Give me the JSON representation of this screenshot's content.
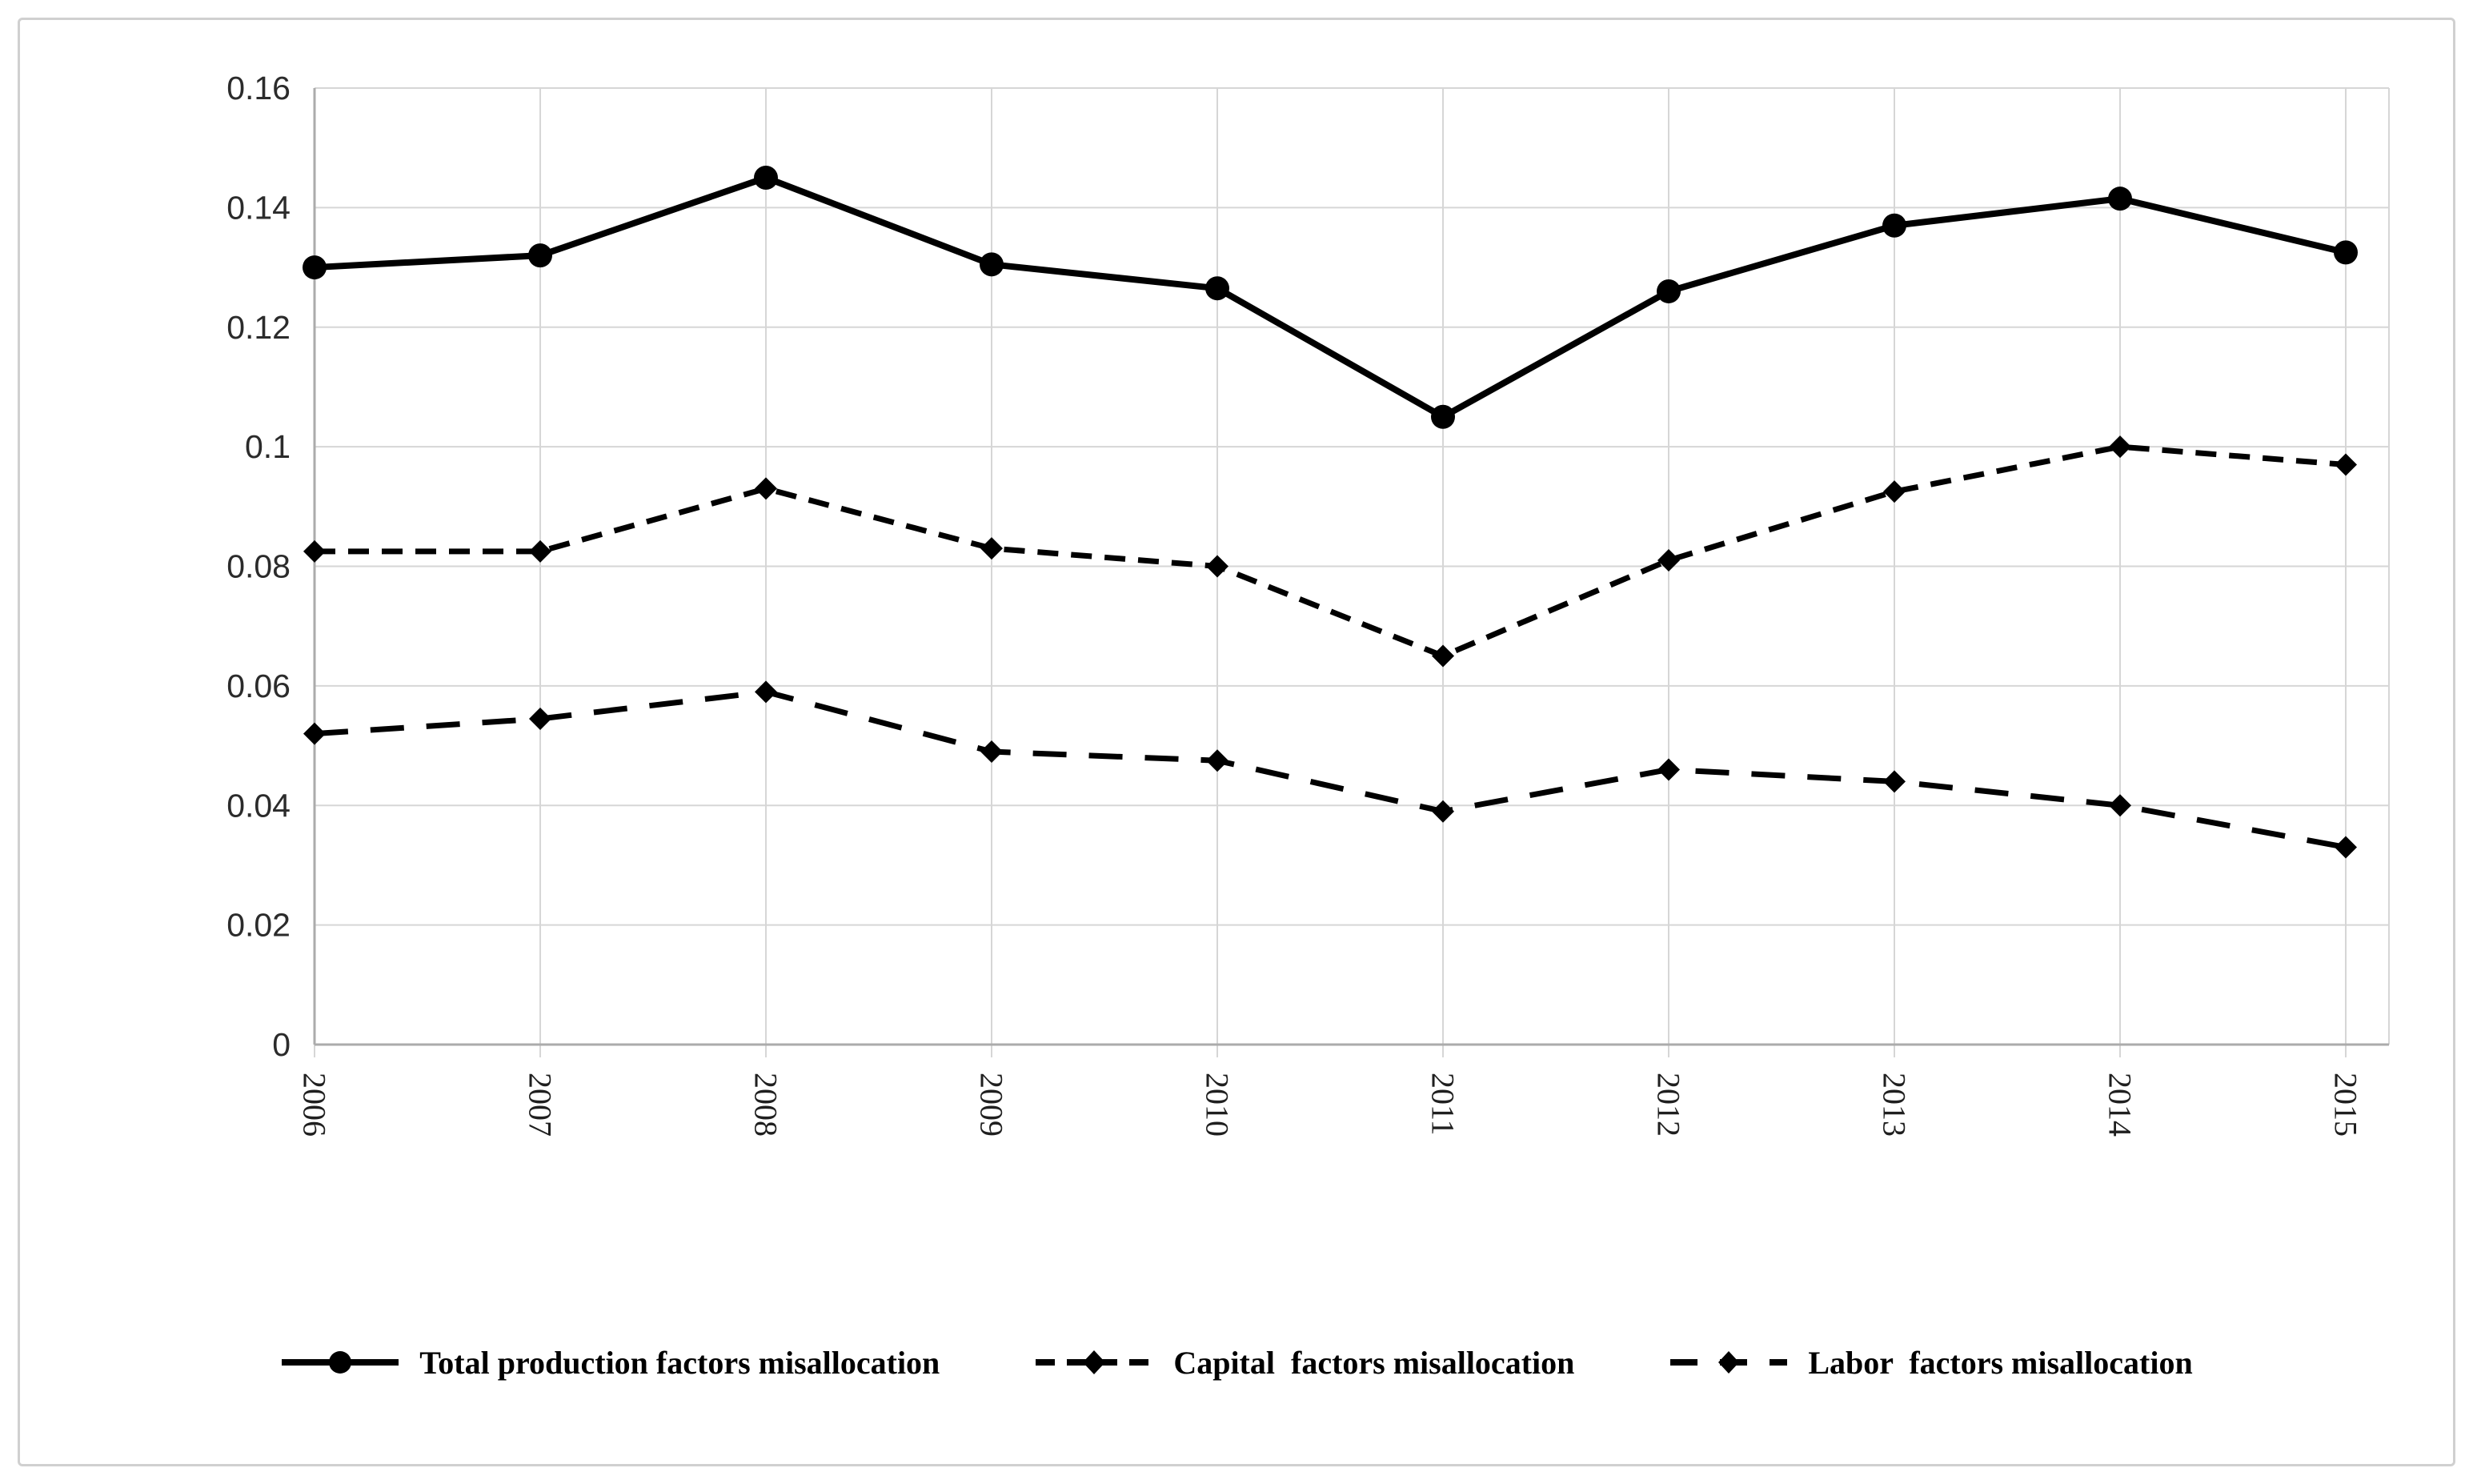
{
  "chart_data": {
    "type": "line",
    "title": "",
    "xlabel": "",
    "ylabel": "",
    "categories": [
      "2006",
      "2007",
      "2008",
      "2009",
      "2010",
      "2011",
      "2012",
      "2013",
      "2014",
      "2015"
    ],
    "ytick_labels": [
      "0",
      "0.02",
      "0.04",
      "0.06",
      "0.08",
      "0.1",
      "0.12",
      "0.14",
      "0.16"
    ],
    "ylim": [
      0,
      0.16
    ],
    "ytick_step": 0.02,
    "grid": true,
    "legend_position": "bottom",
    "series": [
      {
        "name": "Total production factors misallocation",
        "style": "solid",
        "marker": "circle",
        "values": [
          0.13,
          0.132,
          0.145,
          0.1305,
          0.1265,
          0.105,
          0.126,
          0.137,
          0.1415,
          0.1325
        ]
      },
      {
        "name": "Capital  factors misallocation",
        "style": "short-dash",
        "marker": "diamond",
        "values": [
          0.0825,
          0.0825,
          0.093,
          0.083,
          0.08,
          0.065,
          0.081,
          0.0925,
          0.1,
          0.097
        ]
      },
      {
        "name": "Labor  factors misallocation",
        "style": "long-dash",
        "marker": "diamond",
        "values": [
          0.052,
          0.0545,
          0.059,
          0.049,
          0.0475,
          0.039,
          0.046,
          0.044,
          0.04,
          0.033
        ]
      }
    ],
    "colors": {
      "series": "#000000",
      "gridline": "#d6d6d6",
      "axis_line": "#ababab",
      "ytick_text": "#2b2b2b",
      "xtick_text": "#1f1f1f",
      "frame_border": "#d0d0d0",
      "background": "#ffffff"
    }
  }
}
